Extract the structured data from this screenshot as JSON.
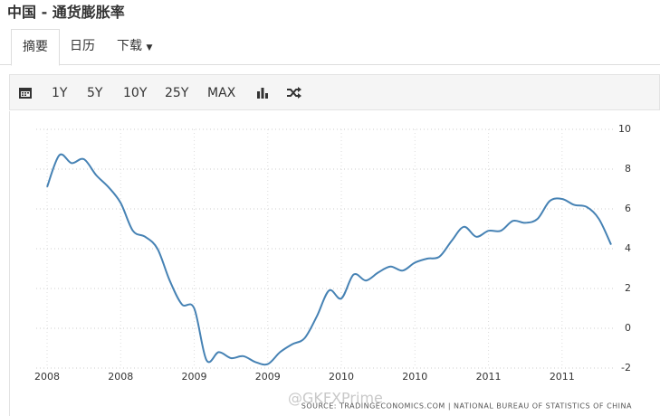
{
  "header": {
    "title": "中国 - 通货膨胀率"
  },
  "tabs": [
    "摘要",
    "日历",
    "下载"
  ],
  "toolbar": {
    "ranges": [
      "1Y",
      "5Y",
      "10Y",
      "25Y",
      "MAX"
    ]
  },
  "source": "SOURCE: TRADINGECONOMICS.COM | NATIONAL BUREAU OF STATISTICS OF CHINA",
  "watermark": "@GKFXPrime",
  "chart_data": {
    "type": "line",
    "categories": [
      "2008",
      null,
      null,
      null,
      null,
      null,
      "2008",
      null,
      null,
      null,
      null,
      null,
      "2009",
      null,
      null,
      null,
      null,
      null,
      "2009",
      null,
      null,
      null,
      null,
      null,
      "2010",
      null,
      null,
      null,
      null,
      null,
      "2010",
      null,
      null,
      null,
      null,
      null,
      "2011",
      null,
      null,
      null,
      null,
      null,
      "2011",
      null,
      null,
      null,
      null
    ],
    "series": [
      {
        "color": "#4682b4",
        "values": [
          7.1,
          8.7,
          8.3,
          8.5,
          7.7,
          7.1,
          6.3,
          4.9,
          4.6,
          4.0,
          2.4,
          1.2,
          1.0,
          -1.6,
          -1.2,
          -1.5,
          -1.4,
          -1.7,
          -1.8,
          -1.2,
          -0.8,
          -0.5,
          0.6,
          1.9,
          1.5,
          2.7,
          2.4,
          2.8,
          3.1,
          2.9,
          3.3,
          3.5,
          3.6,
          4.4,
          5.1,
          4.6,
          4.9,
          4.9,
          5.4,
          5.3,
          5.5,
          6.4,
          6.5,
          6.2,
          6.1,
          5.5,
          4.2
        ]
      }
    ],
    "ylim": [
      -2,
      10
    ],
    "yticks": [
      -2,
      0,
      2,
      4,
      6,
      8,
      10
    ],
    "grid": true
  }
}
